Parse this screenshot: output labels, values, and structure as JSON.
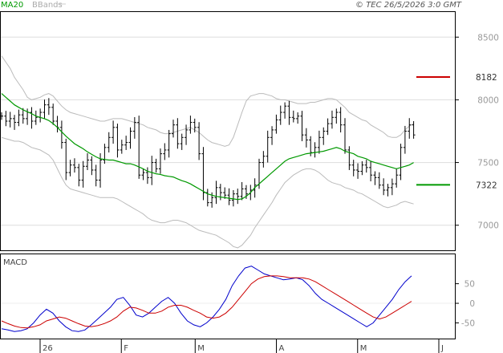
{
  "chart_data": [
    {
      "type": "ohlc",
      "indicators": [
        "MA20",
        "BBands"
      ],
      "watermark": "© TEC 26/5/2026 3:0 GMT",
      "ylim": [
        6800,
        8700
      ],
      "y_ticks": [
        7000,
        7500,
        8000,
        8500
      ],
      "y_tick_labels": [
        "7000",
        "7500",
        "8000",
        "8500"
      ],
      "grid": "horizontal",
      "x_month_labels": [
        {
          "label": "26",
          "index": 5
        },
        {
          "label": "F",
          "index": 16
        },
        {
          "label": "M",
          "index": 26
        },
        {
          "label": "A",
          "index": 37
        },
        {
          "label": "M",
          "index": 48
        },
        {
          "label": "J",
          "index": 59
        }
      ],
      "levels": [
        {
          "value": 8182,
          "label": "8182",
          "color": "#cc0000"
        },
        {
          "value": 7322,
          "label": "7322",
          "color": "#009900"
        }
      ],
      "close": [
        7870,
        7830,
        7850,
        7820,
        7880,
        7850,
        7900,
        7830,
        7860,
        7900,
        7960,
        7940,
        7830,
        7780,
        7660,
        7420,
        7480,
        7460,
        7360,
        7470,
        7520,
        7440,
        7360,
        7520,
        7620,
        7700,
        7780,
        7600,
        7640,
        7660,
        7750,
        7820,
        7400,
        7420,
        7380,
        7500,
        7450,
        7570,
        7600,
        7730,
        7800,
        7650,
        7700,
        7760,
        7820,
        7780,
        7570,
        7260,
        7180,
        7220,
        7300,
        7260,
        7240,
        7200,
        7250,
        7230,
        7290,
        7250,
        7280,
        7320,
        7500,
        7550,
        7700,
        7760,
        7840,
        7900,
        7950,
        7860,
        7850,
        7870,
        7720,
        7680,
        7580,
        7620,
        7700,
        7750,
        7810,
        7860,
        7900,
        7800,
        7600,
        7480,
        7440,
        7430,
        7480,
        7460,
        7400,
        7380,
        7320,
        7280,
        7300,
        7330,
        7400,
        7620,
        7750,
        7800,
        7720
      ],
      "ma20": [
        8050,
        8020,
        7990,
        7960,
        7940,
        7920,
        7905,
        7890,
        7870,
        7860,
        7850,
        7835,
        7810,
        7780,
        7745,
        7710,
        7680,
        7650,
        7630,
        7610,
        7585,
        7565,
        7545,
        7530,
        7525,
        7520,
        7520,
        7510,
        7500,
        7490,
        7490,
        7480,
        7465,
        7450,
        7430,
        7420,
        7410,
        7405,
        7395,
        7390,
        7385,
        7370,
        7355,
        7345,
        7330,
        7310,
        7290,
        7270,
        7250,
        7240,
        7230,
        7225,
        7220,
        7215,
        7210,
        7205,
        7210,
        7230,
        7260,
        7300,
        7330,
        7360,
        7390,
        7420,
        7450,
        7480,
        7510,
        7530,
        7540,
        7550,
        7560,
        7570,
        7575,
        7580,
        7585,
        7590,
        7600,
        7610,
        7620,
        7610,
        7590,
        7580,
        7570,
        7550,
        7540,
        7530,
        7510,
        7500,
        7490,
        7480,
        7470,
        7460,
        7450,
        7460,
        7470,
        7480,
        7500
      ],
      "bb_upper": [
        8350,
        8300,
        8250,
        8180,
        8130,
        8080,
        8020,
        8000,
        8010,
        8020,
        8040,
        8050,
        8030,
        7990,
        7950,
        7920,
        7900,
        7890,
        7880,
        7870,
        7860,
        7850,
        7840,
        7830,
        7830,
        7840,
        7850,
        7850,
        7850,
        7840,
        7830,
        7820,
        7810,
        7800,
        7780,
        7770,
        7760,
        7740,
        7730,
        7730,
        7740,
        7750,
        7760,
        7770,
        7780,
        7760,
        7740,
        7710,
        7680,
        7660,
        7650,
        7640,
        7630,
        7640,
        7700,
        7800,
        7900,
        7990,
        8030,
        8040,
        8050,
        8050,
        8040,
        8030,
        8010,
        8000,
        8000,
        7990,
        7980,
        7970,
        7970,
        7970,
        7980,
        7980,
        7990,
        8000,
        8010,
        8010,
        8000,
        7970,
        7940,
        7900,
        7880,
        7860,
        7840,
        7830,
        7800,
        7780,
        7760,
        7740,
        7710,
        7700,
        7700,
        7720,
        7760,
        7790,
        7810
      ],
      "bb_lower": [
        7700,
        7690,
        7680,
        7670,
        7670,
        7660,
        7640,
        7620,
        7610,
        7600,
        7580,
        7560,
        7520,
        7450,
        7380,
        7320,
        7290,
        7280,
        7270,
        7260,
        7250,
        7240,
        7230,
        7220,
        7220,
        7220,
        7220,
        7210,
        7190,
        7170,
        7150,
        7130,
        7110,
        7090,
        7060,
        7040,
        7030,
        7020,
        7020,
        7030,
        7040,
        7040,
        7030,
        7020,
        7000,
        6980,
        6960,
        6950,
        6940,
        6930,
        6920,
        6900,
        6880,
        6860,
        6830,
        6820,
        6840,
        6880,
        6920,
        6980,
        7030,
        7080,
        7130,
        7180,
        7240,
        7290,
        7340,
        7370,
        7400,
        7420,
        7440,
        7450,
        7450,
        7440,
        7420,
        7390,
        7360,
        7340,
        7330,
        7320,
        7300,
        7290,
        7280,
        7260,
        7250,
        7230,
        7210,
        7190,
        7170,
        7150,
        7140,
        7150,
        7160,
        7180,
        7190,
        7180,
        7170
      ]
    },
    {
      "type": "line",
      "title": "MACD",
      "ylim": [
        -90,
        125
      ],
      "y_ticks": [
        50,
        0,
        -50
      ],
      "y_tick_labels": [
        "50",
        "0",
        "-50"
      ],
      "x_month_labels": [
        {
          "label": "26",
          "index": 5
        },
        {
          "label": "F",
          "index": 16
        },
        {
          "label": "M",
          "index": 26
        },
        {
          "label": "A",
          "index": 37
        },
        {
          "label": "M",
          "index": 48
        },
        {
          "label": "J",
          "index": 59
        }
      ],
      "series": [
        {
          "color": "#0000cc",
          "values": [
            -65,
            -68,
            -72,
            -70,
            -65,
            -50,
            -30,
            -15,
            -25,
            -45,
            -60,
            -70,
            -72,
            -68,
            -55,
            -40,
            -25,
            -10,
            10,
            15,
            -5,
            -30,
            -35,
            -25,
            -10,
            5,
            15,
            0,
            -25,
            -45,
            -55,
            -60,
            -50,
            -35,
            -15,
            10,
            45,
            70,
            90,
            95,
            85,
            75,
            70,
            65,
            60,
            62,
            65,
            60,
            45,
            25,
            10,
            0,
            -10,
            -20,
            -30,
            -40,
            -50,
            -60,
            -50,
            -30,
            -10,
            10,
            35,
            55,
            70
          ]
        },
        {
          "color": "#cc0000",
          "values": [
            -45,
            -52,
            -58,
            -62,
            -63,
            -60,
            -55,
            -45,
            -40,
            -35,
            -38,
            -45,
            -52,
            -58,
            -60,
            -57,
            -52,
            -45,
            -35,
            -20,
            -10,
            -12,
            -18,
            -25,
            -25,
            -20,
            -10,
            -5,
            -5,
            -10,
            -18,
            -25,
            -35,
            -38,
            -35,
            -25,
            -10,
            10,
            30,
            50,
            62,
            68,
            70,
            70,
            68,
            65,
            65,
            65,
            62,
            55,
            45,
            35,
            25,
            15,
            5,
            -5,
            -15,
            -25,
            -35,
            -40,
            -35,
            -25,
            -15,
            -5,
            5
          ]
        }
      ]
    }
  ]
}
